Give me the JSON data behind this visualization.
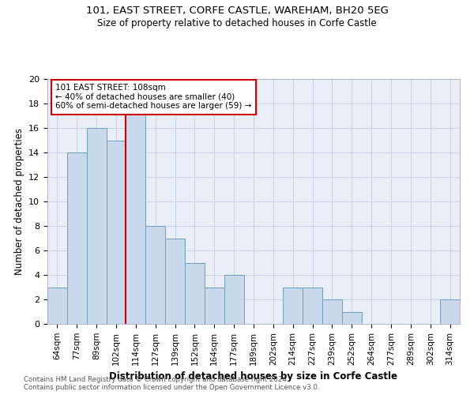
{
  "title1": "101, EAST STREET, CORFE CASTLE, WAREHAM, BH20 5EG",
  "title2": "Size of property relative to detached houses in Corfe Castle",
  "xlabel": "Distribution of detached houses by size in Corfe Castle",
  "ylabel": "Number of detached properties",
  "categories": [
    "64sqm",
    "77sqm",
    "89sqm",
    "102sqm",
    "114sqm",
    "127sqm",
    "139sqm",
    "152sqm",
    "164sqm",
    "177sqm",
    "189sqm",
    "202sqm",
    "214sqm",
    "227sqm",
    "239sqm",
    "252sqm",
    "264sqm",
    "277sqm",
    "289sqm",
    "302sqm",
    "314sqm"
  ],
  "values": [
    3,
    14,
    16,
    15,
    19,
    8,
    7,
    5,
    3,
    4,
    0,
    0,
    3,
    3,
    2,
    1,
    0,
    0,
    0,
    0,
    2
  ],
  "bar_color": "#c8d9ed",
  "bar_edge_color": "#6a9ec0",
  "property_label": "101 EAST STREET: 108sqm",
  "annotation_line1": "← 40% of detached houses are smaller (40)",
  "annotation_line2": "60% of semi-detached houses are larger (59) →",
  "vline_color": "#cc0000",
  "vline_x": 3.5,
  "annotation_box_color": "#cc0000",
  "grid_color": "#c8d4e8",
  "background_color": "#eaeff7",
  "footnote1": "Contains HM Land Registry data © Crown copyright and database right 2024.",
  "footnote2": "Contains public sector information licensed under the Open Government Licence v3.0.",
  "ylim": [
    0,
    20
  ],
  "yticks": [
    0,
    2,
    4,
    6,
    8,
    10,
    12,
    14,
    16,
    18,
    20
  ]
}
